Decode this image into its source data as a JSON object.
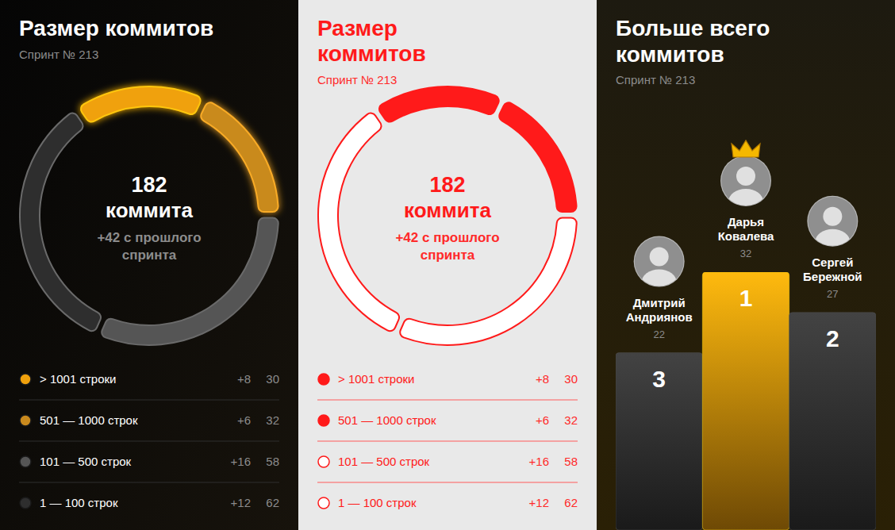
{
  "chart_data": [
    {
      "type": "donut",
      "title": "Размер коммитов",
      "subtitle": "Спринт № 213",
      "total": 182,
      "total_label": "коммита",
      "annotation": "+42 с прошлого спринта",
      "categories": [
        "> 1001 строки",
        "501 — 1000 строк",
        "101 — 500 строк",
        "1 — 100 строк"
      ],
      "values": [
        30,
        32,
        58,
        62
      ],
      "change_labels": [
        "+8",
        "+6",
        "+16",
        "+12"
      ],
      "colors": [
        "#f0a10c",
        "#c98a1e",
        "#555555",
        "#2e2e2e"
      ],
      "legend": "bottom"
    },
    {
      "type": "bar",
      "title": "Больше всего коммитов",
      "subtitle": "Спринт № 213",
      "categories": [
        "Дмитрий Андриянов",
        "Дарья Ковалева",
        "Сергей Бережной"
      ],
      "values": [
        22,
        32,
        27
      ],
      "ranks": [
        3,
        1,
        2
      ],
      "colors": [
        "#3a3a3a",
        "#f0a10c",
        "#3a3a3a"
      ],
      "data_labels": true,
      "tick_labels": false
    }
  ]
}
